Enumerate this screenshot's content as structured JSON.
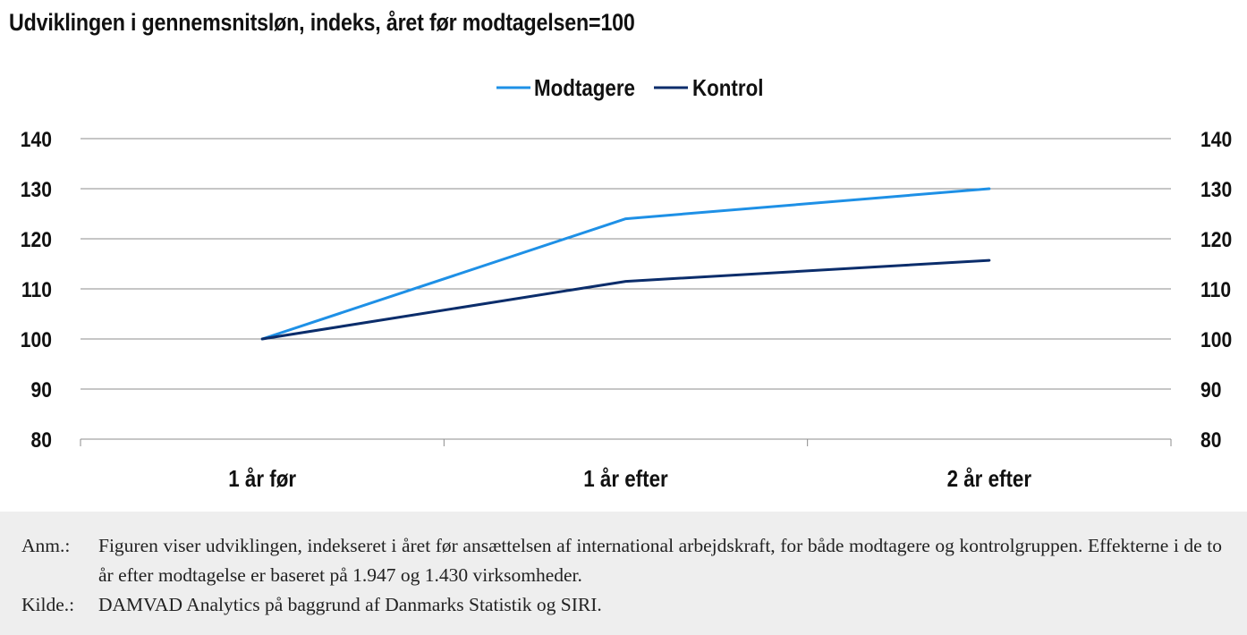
{
  "title": "Udviklingen i gennemsnitsløn, indeks, året før modtagelsen=100",
  "chart_data": {
    "type": "line",
    "categories": [
      "1 år før",
      "1 år efter",
      "2 år efter"
    ],
    "series": [
      {
        "name": "Modtagere",
        "values": [
          100,
          124,
          130
        ],
        "color": "#1e90e6"
      },
      {
        "name": "Kontrol",
        "values": [
          100,
          111.5,
          115.7
        ],
        "color": "#0b2d6b"
      }
    ],
    "ylim": [
      80,
      140
    ],
    "yticks": [
      80,
      90,
      100,
      110,
      120,
      130,
      140
    ],
    "secondary_y_axis": true,
    "grid": true,
    "legend_position": "top-center"
  },
  "notes": [
    {
      "key": "Anm.:",
      "text": "Figuren viser udviklingen, indekseret i året før ansættelsen af international arbejdskraft, for både modtagere og kontrolgruppen. Effekterne i de to år efter modtagelse er baseret på 1.947 og 1.430 virksomheder."
    },
    {
      "key": "Kilde.:",
      "text": "DAMVAD Analytics på baggrund af Danmarks Statistik og SIRI."
    }
  ]
}
